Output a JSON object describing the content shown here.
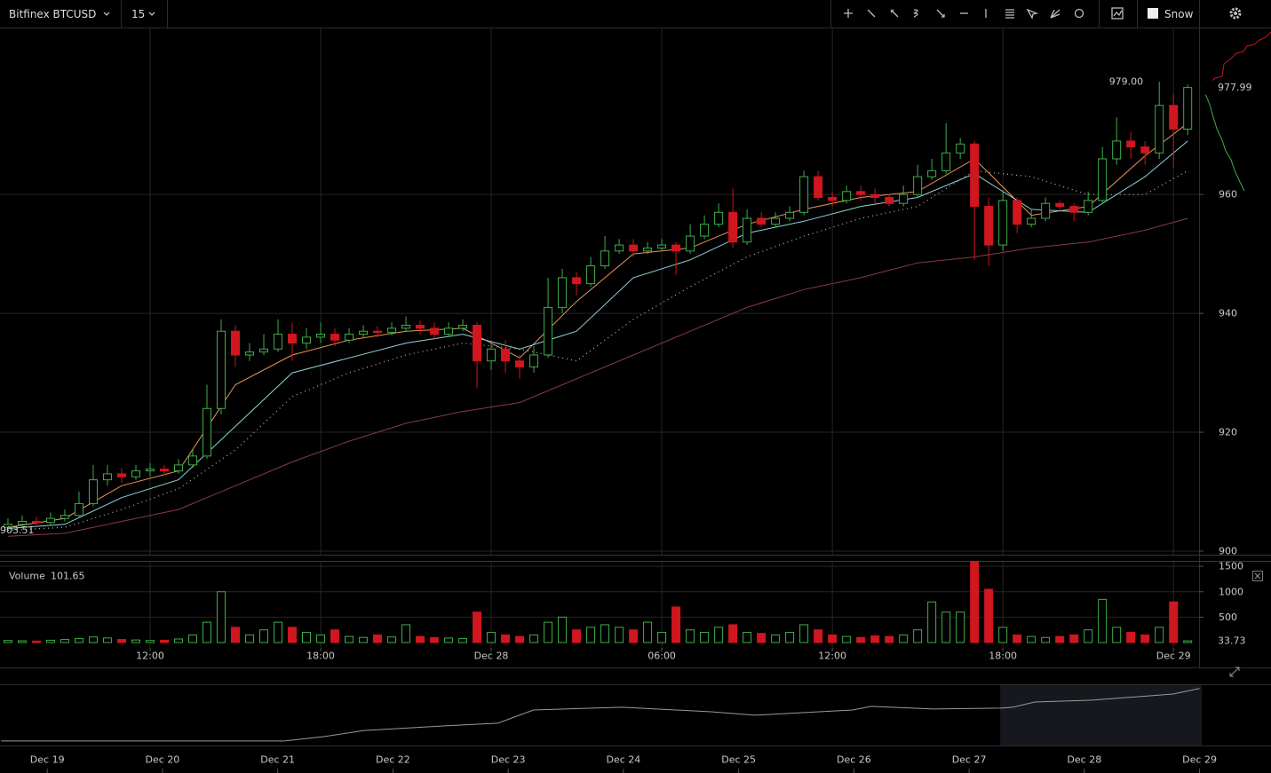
{
  "toolbar": {
    "symbol": "Bitfinex BTCUSD",
    "interval": "15",
    "theme": "Snow"
  },
  "chart_data": {
    "type": "candlestick",
    "x": [
      7,
      7.5,
      8,
      8.5,
      9,
      9.5,
      10,
      10.5,
      11,
      11.5,
      12,
      12.5,
      13,
      13.5,
      14,
      14.5,
      15,
      15.5,
      16,
      16.5,
      17,
      17.5,
      18,
      18.5,
      19,
      19.5,
      20,
      20.5,
      21,
      21.5,
      22,
      22.5,
      23,
      23.5,
      24,
      24.5,
      25,
      25.5,
      26,
      26.5,
      27,
      27.5,
      28,
      28.5,
      29,
      29.5,
      30,
      30.5,
      31,
      31.5,
      32,
      32.5,
      33,
      33.5,
      34,
      34.5,
      35,
      35.5,
      36,
      36.5,
      37,
      37.5,
      38,
      38.5,
      39,
      39.5,
      40,
      40.5,
      41,
      41.5,
      42,
      42.5,
      43,
      43.5,
      44,
      44.5,
      45,
      45.5,
      46,
      46.5,
      47,
      47.5,
      48,
      48.5
    ],
    "open": [
      904,
      904.5,
      905,
      904.8,
      905.5,
      906,
      908,
      912,
      913,
      912.5,
      913.5,
      913.8,
      913.5,
      914.5,
      916,
      924,
      937,
      933,
      933.5,
      934,
      936.5,
      935,
      936,
      936.5,
      935.5,
      936.5,
      937,
      936.8,
      937.5,
      938,
      937.5,
      936.5,
      937.5,
      938,
      932,
      934,
      932,
      931,
      933,
      941,
      946,
      945,
      948,
      950.5,
      951.5,
      950.5,
      951,
      951.5,
      950.5,
      953,
      955,
      957,
      952,
      956,
      955,
      956,
      957,
      963,
      959.5,
      959,
      960.5,
      960,
      959.5,
      958.5,
      960,
      963,
      964,
      967,
      968.5,
      958,
      951.5,
      959,
      955,
      956,
      958.5,
      958,
      957,
      959,
      966,
      969,
      968,
      967,
      975,
      971
    ],
    "high": [
      905.5,
      906,
      905.8,
      906.5,
      907,
      910,
      914.5,
      914.5,
      914,
      914.5,
      914.8,
      914.5,
      915.5,
      917,
      928,
      939,
      938,
      935,
      936.5,
      939,
      938.5,
      937.5,
      938.5,
      937.5,
      937.5,
      938,
      937.8,
      938.5,
      939.5,
      938.8,
      938.5,
      938.5,
      939,
      938.5,
      935,
      935.5,
      933,
      934.5,
      946,
      947.5,
      947,
      949.5,
      953,
      952.5,
      952.5,
      952,
      952.5,
      952,
      955,
      956.5,
      958.5,
      961,
      957.5,
      957,
      957,
      958,
      964,
      964,
      960.5,
      961.5,
      961.5,
      961,
      960,
      961.5,
      965,
      966,
      972,
      969.5,
      969,
      959.5,
      960.5,
      959.5,
      957.5,
      959.5,
      959,
      958.5,
      960.5,
      968,
      973,
      970.5,
      969,
      979,
      977,
      978.5
    ],
    "low": [
      903.5,
      904,
      904,
      904.3,
      905,
      905.5,
      907.5,
      911,
      911.5,
      912,
      912.5,
      912.8,
      913,
      914,
      915.5,
      923,
      931,
      932,
      933,
      933.5,
      932,
      934,
      935,
      934.5,
      935,
      936,
      936,
      936.3,
      937,
      936.5,
      935.5,
      936,
      937,
      927.5,
      930.5,
      930,
      929,
      930,
      932.5,
      940,
      943,
      944.5,
      947.5,
      950,
      949.5,
      950,
      950.5,
      946.5,
      950,
      952.5,
      954.5,
      951,
      951.5,
      954.5,
      954.5,
      955.5,
      956.5,
      959,
      958,
      958.5,
      959,
      958.5,
      958,
      958,
      959.5,
      962.5,
      963.5,
      966,
      949,
      948,
      950.5,
      953.5,
      954.5,
      955.5,
      957.5,
      955.5,
      956.5,
      958.5,
      965,
      966,
      965,
      966,
      964.5,
      970
    ],
    "close": [
      904.5,
      905,
      904.8,
      905.5,
      906,
      908,
      912,
      913,
      912.5,
      913.5,
      913.8,
      913.5,
      914.5,
      916,
      924,
      937,
      933,
      933.5,
      934,
      936.5,
      935,
      936,
      936.5,
      935.5,
      936.5,
      937,
      936.8,
      937.5,
      938,
      937.5,
      936.5,
      937.5,
      938,
      932,
      934,
      932,
      931,
      933,
      941,
      946,
      945,
      948,
      950.5,
      951.5,
      950.5,
      951,
      951.5,
      950.5,
      953,
      955,
      957,
      952,
      956,
      955,
      956,
      957,
      963,
      959.5,
      959,
      960.5,
      960,
      959.5,
      958.5,
      960,
      963,
      964,
      967,
      968.5,
      958,
      951.5,
      959,
      955,
      956,
      958.5,
      958,
      957,
      959,
      966,
      969,
      968,
      967,
      975,
      971,
      978
    ],
    "up_color": "#3fae49",
    "down_color": "#d0161e",
    "xlim": [
      6.72,
      48.9
    ],
    "ylim": [
      899.4,
      988.1
    ],
    "xticks": [
      {
        "value": 12,
        "label": "12:00"
      },
      {
        "value": 18,
        "label": "18:00"
      },
      {
        "value": 24,
        "label": "Dec 28"
      },
      {
        "value": 30,
        "label": "06:00"
      },
      {
        "value": 36,
        "label": "12:00"
      },
      {
        "value": 42,
        "label": "18:00"
      },
      {
        "value": 48,
        "label": "Dec 29"
      }
    ],
    "yticks": [
      900,
      920,
      940,
      960
    ],
    "grid": true,
    "annotations": [
      {
        "x": 47.5,
        "value": 979,
        "label": "979.00"
      },
      {
        "x": 7,
        "value": 903.51,
        "label": "903.51"
      }
    ],
    "last_price": {
      "value": 977.99,
      "label": "977.99"
    },
    "overlay_x": [
      7,
      9,
      11,
      13,
      15,
      17,
      19,
      21,
      23,
      25,
      27,
      29,
      31,
      33,
      35,
      37,
      39,
      41,
      43,
      45,
      47,
      48.5
    ],
    "overlays": [
      {
        "color": "#e8955a",
        "style": "solid",
        "values": [
          904,
          905.5,
          911,
          913.5,
          928,
          933,
          935.5,
          937,
          937.5,
          932.5,
          942,
          950,
          951,
          955,
          957.5,
          959.5,
          960.5,
          966,
          956.5,
          958,
          966.5,
          972
        ]
      },
      {
        "color": "#8fd3dc",
        "style": "solid",
        "values": [
          903.8,
          904.5,
          909,
          912,
          921,
          930,
          932.5,
          935,
          936.5,
          934,
          937,
          946,
          949,
          953.5,
          955.5,
          958,
          959.5,
          963.5,
          957.5,
          957,
          963,
          969
        ]
      },
      {
        "color": "#bbbbbb",
        "style": "dotted",
        "values": [
          903.5,
          904,
          907,
          910.5,
          917,
          926,
          930,
          933,
          935,
          934,
          932,
          939,
          944.5,
          949.5,
          953,
          956,
          958,
          964,
          963,
          960,
          960,
          964
        ]
      },
      {
        "color": "#8a3a42",
        "style": "solid",
        "values": [
          902.5,
          903,
          905,
          907,
          911,
          915,
          918.5,
          921.5,
          923.5,
          925,
          929,
          933,
          937,
          941,
          944,
          946,
          948.5,
          949.5,
          951,
          952,
          954,
          956
        ]
      }
    ],
    "volume": {
      "name": "Volume",
      "legend_value": "101.65",
      "values": [
        40,
        35,
        30,
        45,
        60,
        80,
        110,
        90,
        60,
        50,
        40,
        45,
        70,
        150,
        400,
        1000,
        300,
        150,
        250,
        400,
        300,
        200,
        150,
        250,
        120,
        100,
        150,
        110,
        350,
        120,
        100,
        90,
        80,
        600,
        200,
        150,
        120,
        150,
        400,
        500,
        250,
        300,
        350,
        300,
        250,
        400,
        200,
        700,
        250,
        200,
        300,
        350,
        200,
        180,
        150,
        200,
        350,
        250,
        150,
        120,
        100,
        130,
        120,
        150,
        250,
        800,
        600,
        600,
        1600,
        1050,
        300,
        150,
        120,
        100,
        120,
        150,
        250,
        850,
        300,
        200,
        150,
        300,
        800,
        33.73
      ],
      "ylim": [
        0,
        1590
      ],
      "yticks": [
        500,
        1000,
        1500
      ]
    },
    "navigator": {
      "x": [
        18.6,
        21.06,
        21.4,
        21.75,
        22.45,
        22.91,
        23.22,
        23.99,
        24.76,
        25.14,
        25.99,
        26.15,
        26.69,
        27.27,
        27.38,
        27.57,
        28.07,
        28.77,
        29.0
      ],
      "values": [
        756,
        756,
        775,
        802,
        822,
        834,
        892,
        904,
        884,
        869,
        892,
        908,
        896,
        900,
        904,
        927,
        935,
        962,
        986
      ],
      "xlim": [
        18.59,
        29.62
      ],
      "ylim": [
        736,
        1001
      ],
      "xticks": [
        {
          "value": 19,
          "label": "Dec 19"
        },
        {
          "value": 20,
          "label": "Dec 20"
        },
        {
          "value": 21,
          "label": "Dec 21"
        },
        {
          "value": 22,
          "label": "Dec 22"
        },
        {
          "value": 23,
          "label": "Dec 23"
        },
        {
          "value": 24,
          "label": "Dec 24"
        },
        {
          "value": 25,
          "label": "Dec 25"
        },
        {
          "value": 26,
          "label": "Dec 26"
        },
        {
          "value": 27,
          "label": "Dec 27"
        },
        {
          "value": 28,
          "label": "Dec 28"
        },
        {
          "value": 29,
          "label": "Dec 29"
        }
      ],
      "selection": [
        27.27,
        29.02
      ]
    }
  }
}
